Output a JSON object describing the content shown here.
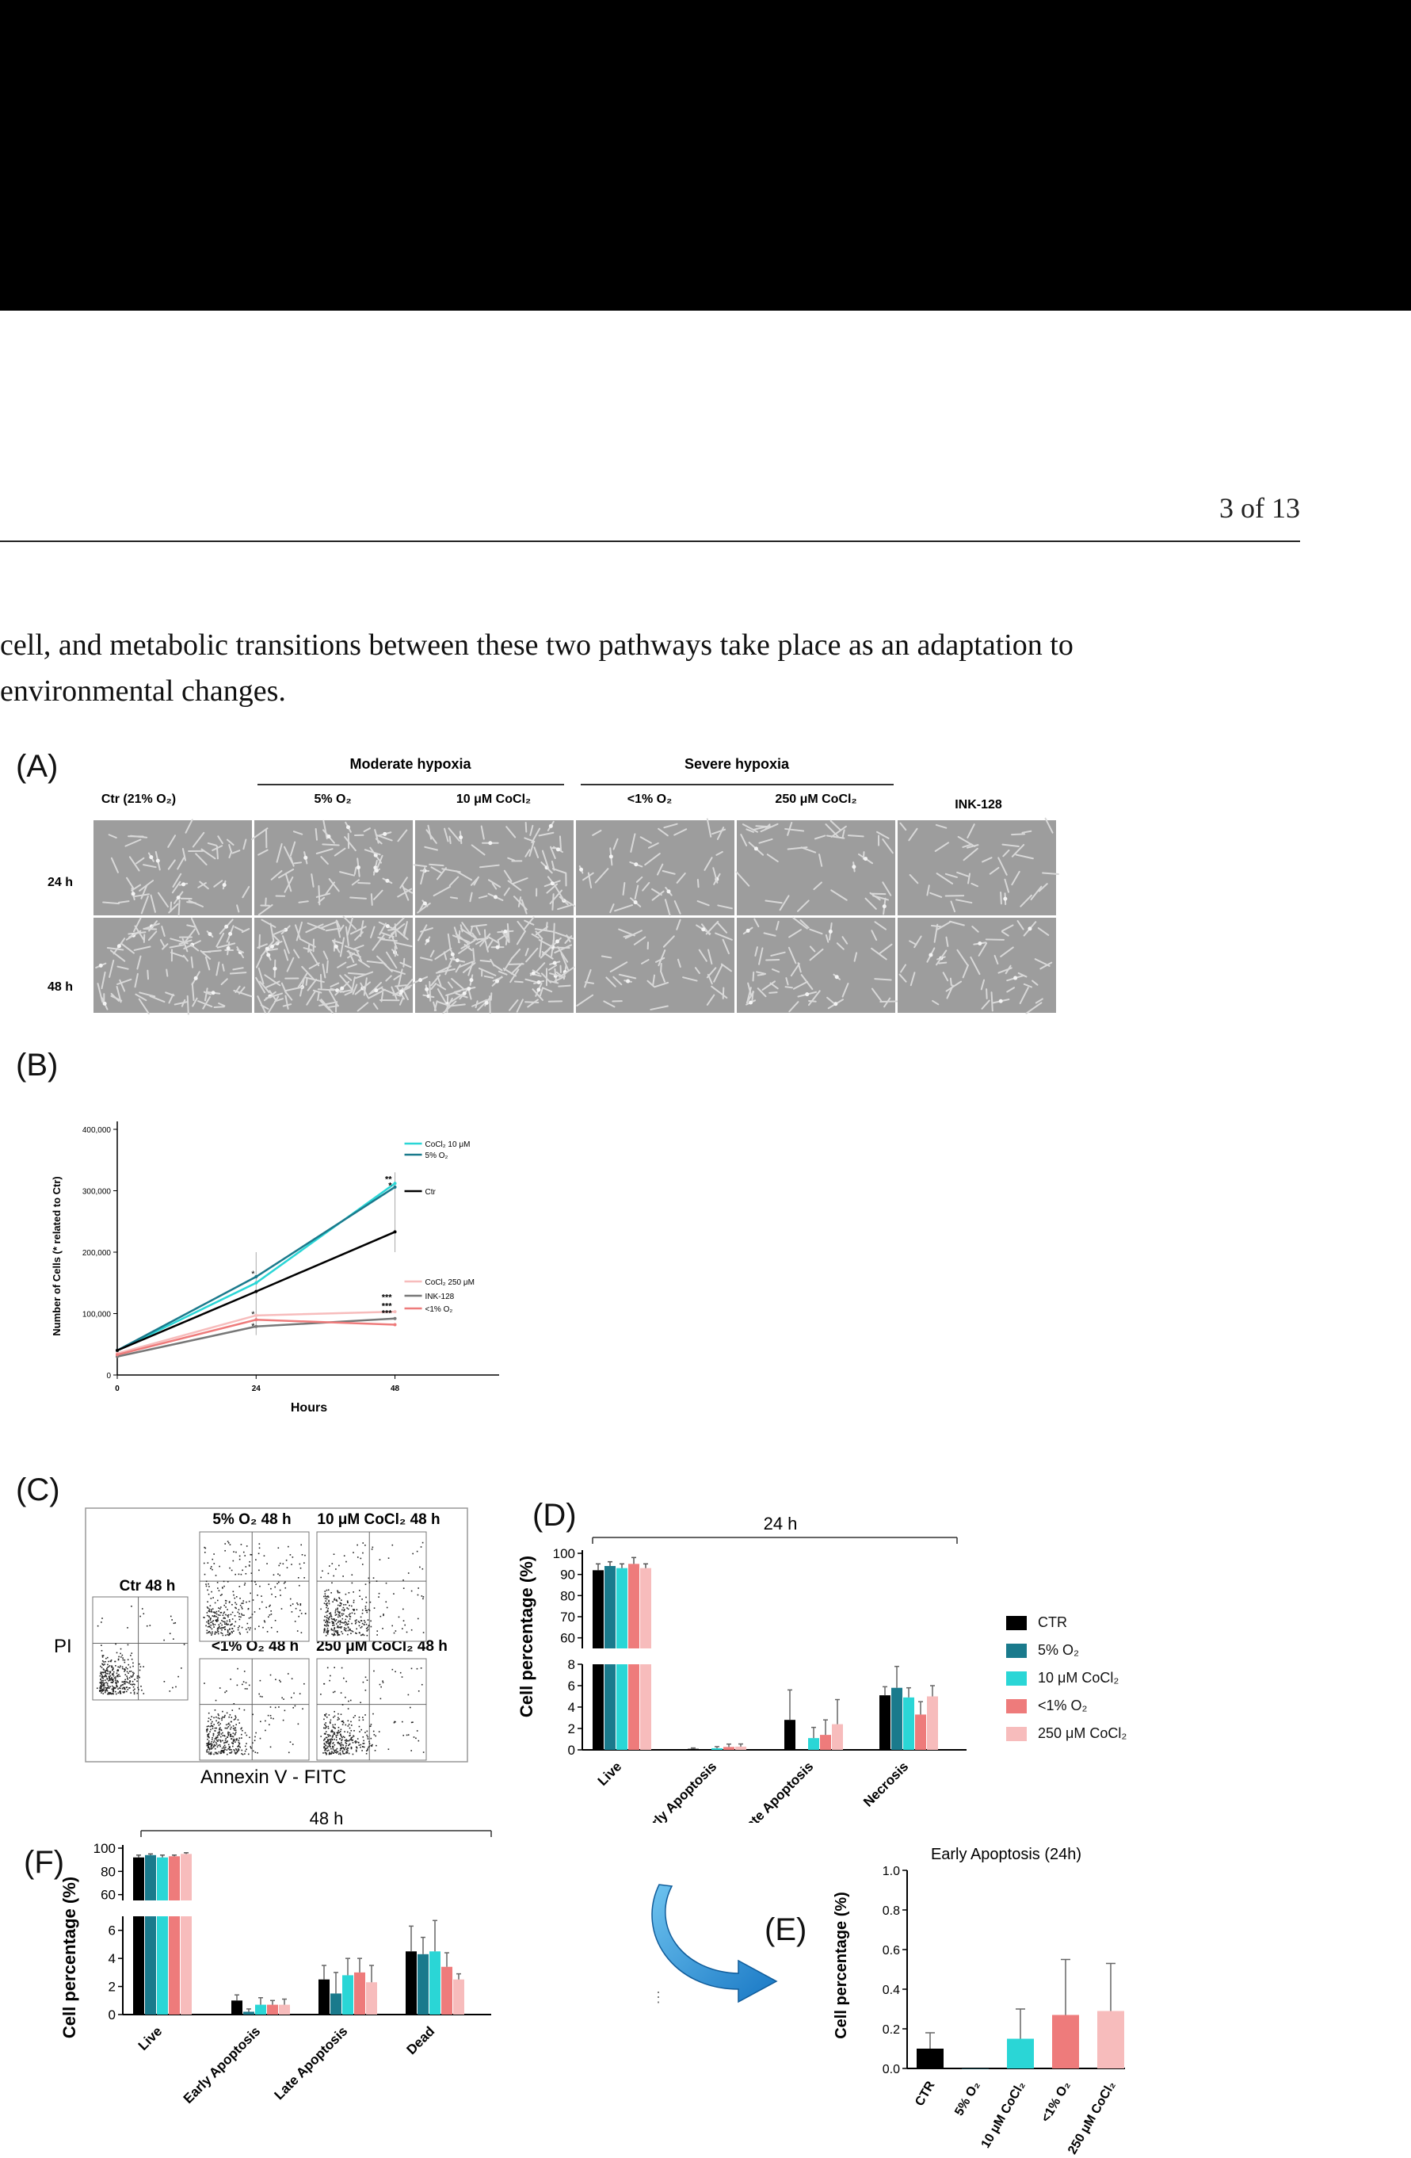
{
  "header": {
    "page_number": "3 of 13"
  },
  "body_text": {
    "lines": [
      "cell, and metabolic transitions between these two pathways take place as an adaptation to",
      "environmental changes."
    ]
  },
  "figure": {
    "panel_labels": {
      "a": "(A)",
      "b": "(B)",
      "c": "(C)",
      "d": "(D)",
      "e": "(E)",
      "f": "(F)"
    },
    "panel_a": {
      "groups": [
        "Moderate hypoxia",
        "Severe hypoxia"
      ],
      "columns": [
        "Ctr (21% O₂)",
        "5% O₂",
        "10 μM CoCl₂",
        "<1% O₂",
        "250 μM CoCl₂",
        "INK-128"
      ],
      "rows": [
        "24 h",
        "48 h"
      ]
    },
    "panel_c": {
      "y_label": "PI",
      "x_label": "Annexin V - FITC",
      "plots": [
        "Ctr 48 h",
        "5% O₂ 48 h",
        "10 μM CoCl₂ 48 h",
        "<1% O₂ 48 h",
        "250 μM CoCl₂ 48 h"
      ]
    },
    "legend_de": {
      "items": [
        "CTR",
        "5% O₂",
        "10 μM CoCl₂",
        "<1% O₂",
        "250 μM CoCl₂"
      ],
      "colors": [
        "#000000",
        "#1a7a8c",
        "#2ad6d6",
        "#ee7b7b",
        "#f7bcbc"
      ]
    }
  },
  "chart_data": [
    {
      "id": "B",
      "type": "line",
      "xlabel": "Hours",
      "ylabel": "Number of Cells (* related to Ctr)",
      "x": [
        0,
        24,
        48
      ],
      "xticks": [
        "0",
        "24",
        "48"
      ],
      "ylim": [
        0,
        400000
      ],
      "yticks": [
        "0",
        "100,000",
        "200,000",
        "300,000",
        "400,000"
      ],
      "series": [
        {
          "name": "CoCl₂ 10 μM",
          "color": "#2ad6d6",
          "values": [
            40000,
            150000,
            312000
          ],
          "sig": "**"
        },
        {
          "name": "5% O₂",
          "color": "#1a7a8c",
          "values": [
            40000,
            160000,
            306000
          ],
          "sig": "*"
        },
        {
          "name": "Ctr",
          "color": "#000000",
          "values": [
            40000,
            136000,
            233000
          ],
          "sig": ""
        },
        {
          "name": "CoCl₂ 250 μM",
          "color": "#f7bcbc",
          "values": [
            35000,
            97000,
            103000
          ],
          "sig": "***"
        },
        {
          "name": "INK-128",
          "color": "#777777",
          "values": [
            30000,
            79000,
            92000
          ],
          "sig": "***"
        },
        {
          "name": "<1% O₂",
          "color": "#ee7b7b",
          "values": [
            33000,
            90000,
            82000
          ],
          "sig": "***"
        }
      ],
      "point_sig_24": [
        "*",
        "*",
        "*"
      ]
    },
    {
      "id": "D",
      "type": "bar",
      "title": "24 h",
      "ylabel": "Cell percentage (%)",
      "categories": [
        "Live",
        "Early Apoptosis",
        "Late Apoptosis",
        "Necrosis"
      ],
      "series_names": [
        "CTR",
        "5% O₂",
        "10 μM CoCl₂",
        "<1% O₂",
        "250 μM CoCl₂"
      ],
      "values": [
        [
          92,
          94,
          93,
          95,
          93
        ],
        [
          0.1,
          0.0,
          0.15,
          0.27,
          0.3
        ],
        [
          2.8,
          0.0,
          1.1,
          1.4,
          2.4
        ],
        [
          5.1,
          5.8,
          4.9,
          3.3,
          5.0
        ]
      ],
      "errors": [
        [
          3,
          2,
          2,
          3,
          2
        ],
        [
          0.08,
          0,
          0.15,
          0.27,
          0.25
        ],
        [
          2.8,
          0,
          1.0,
          1.4,
          2.3
        ],
        [
          0.8,
          2.0,
          0.9,
          1.2,
          1.0
        ]
      ],
      "ylim_top": [
        55,
        100
      ],
      "yticks_top": [
        "60",
        "70",
        "80",
        "90",
        "100"
      ],
      "ylim_bottom": [
        0,
        8
      ],
      "yticks_bottom": [
        "0",
        "2",
        "4",
        "6",
        "8"
      ]
    },
    {
      "id": "E",
      "type": "bar",
      "title": "Early Apoptosis (24h)",
      "ylabel": "Cell percentage (%)",
      "categories": [
        "CTR",
        "5% O₂",
        "10 μM CoCl₂",
        "<1% O₂",
        "250 μM CoCl₂"
      ],
      "values": [
        0.1,
        0.0,
        0.15,
        0.27,
        0.29
      ],
      "errors": [
        0.08,
        0.0,
        0.15,
        0.28,
        0.24
      ],
      "ylim": [
        0,
        1.0
      ],
      "yticks": [
        "0.0",
        "0.2",
        "0.4",
        "0.6",
        "0.8",
        "1.0"
      ]
    },
    {
      "id": "F",
      "type": "bar",
      "title": "48 h",
      "ylabel": "Cell percentage (%)",
      "categories": [
        "Live",
        "Early Apoptosis",
        "Late Apoptosis",
        "Dead"
      ],
      "series_names": [
        "CTR",
        "5% O₂",
        "10 μM CoCl₂",
        "<1% O₂",
        "250 μM CoCl₂"
      ],
      "values": [
        [
          92,
          94,
          92,
          93,
          95
        ],
        [
          1.0,
          0.2,
          0.7,
          0.7,
          0.7
        ],
        [
          2.5,
          1.5,
          2.8,
          3.0,
          2.3
        ],
        [
          4.5,
          4.3,
          4.5,
          3.4,
          2.5
        ]
      ],
      "errors": [
        [
          2,
          1,
          2,
          1,
          1
        ],
        [
          0.4,
          0.2,
          0.5,
          0.3,
          0.4
        ],
        [
          1.0,
          1.5,
          1.2,
          1.0,
          1.2
        ],
        [
          1.8,
          1.2,
          2.2,
          1.0,
          0.4
        ]
      ],
      "ylim_top": [
        55,
        100
      ],
      "yticks_top": [
        "60",
        "80",
        "100"
      ],
      "ylim_bottom": [
        0,
        7
      ],
      "yticks_bottom": [
        "0",
        "2",
        "4",
        "6"
      ]
    }
  ]
}
